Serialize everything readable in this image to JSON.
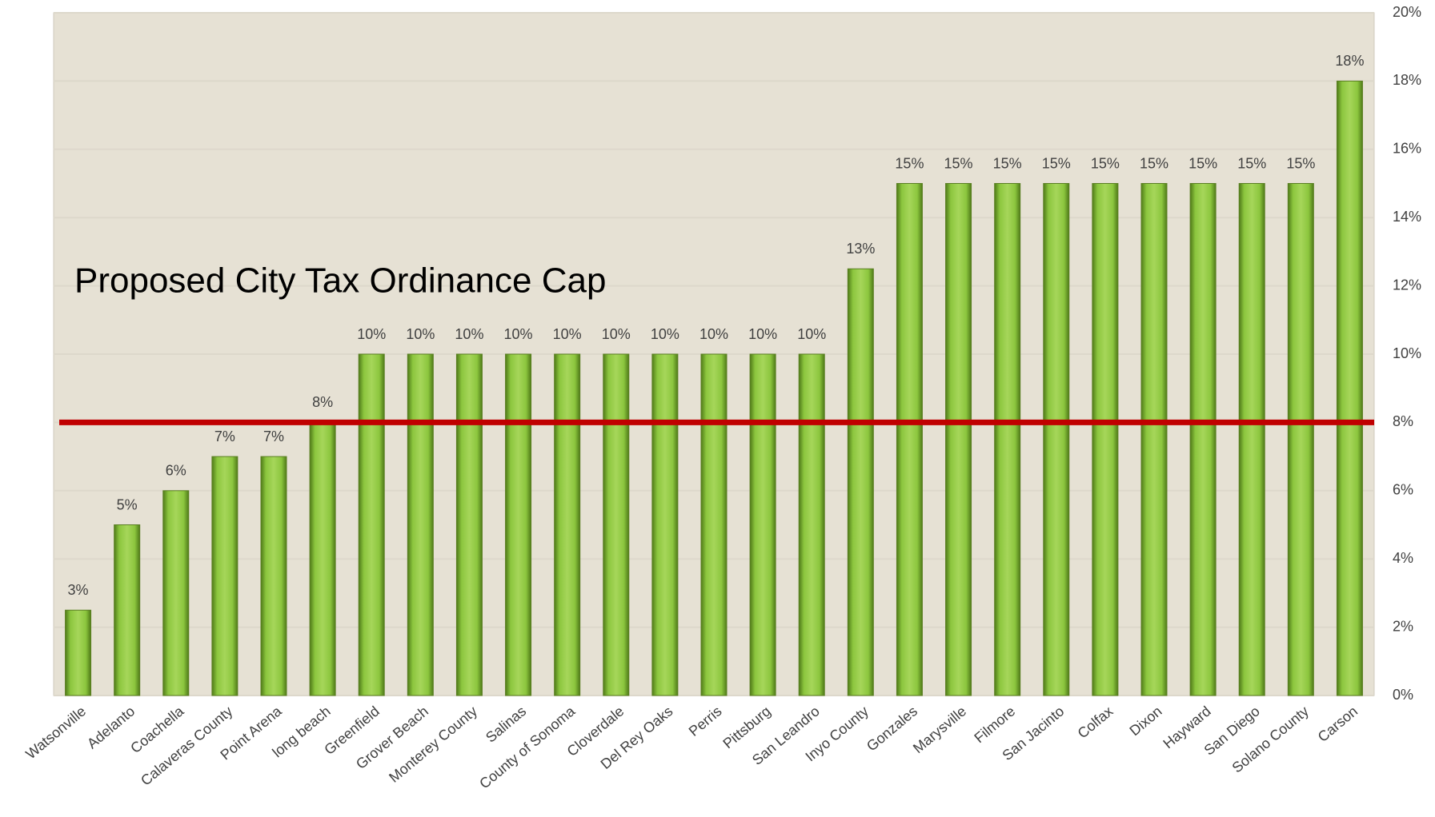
{
  "chart_data": {
    "type": "bar",
    "categories": [
      "Watsonville",
      "Adelanto",
      "Coachella",
      "Calaveras County",
      "Point Arena",
      "long beach",
      "Greenfield",
      "Grover Beach",
      "Monterey County",
      "Salinas",
      "County of Sonoma",
      "Cloverdale",
      "Del Rey Oaks",
      "Perris",
      "Pittsburg",
      "San Leandro",
      "Inyo County",
      "Gonzales",
      "Marysville",
      "Filmore",
      "San Jacinto",
      "Colfax",
      "Dixon",
      "Hayward",
      "San Diego",
      "Solano County",
      "Carson"
    ],
    "values": [
      2.5,
      5,
      6,
      7,
      7,
      8,
      10,
      10,
      10,
      10,
      10,
      10,
      10,
      10,
      10,
      10,
      12.5,
      15,
      15,
      15,
      15,
      15,
      15,
      15,
      15,
      15,
      18
    ],
    "value_labels": [
      "3%",
      "5%",
      "6%",
      "7%",
      "7%",
      "8%",
      "10%",
      "10%",
      "10%",
      "10%",
      "10%",
      "10%",
      "10%",
      "10%",
      "10%",
      "10%",
      "13%",
      "15%",
      "15%",
      "15%",
      "15%",
      "15%",
      "15%",
      "15%",
      "15%",
      "15%",
      "18%"
    ],
    "color": "#8cc63e",
    "ylim": [
      0,
      20
    ],
    "yticks": [
      {
        "value": 0,
        "label": "0%"
      },
      {
        "value": 2,
        "label": "2%"
      },
      {
        "value": 4,
        "label": "4%"
      },
      {
        "value": 6,
        "label": "6%"
      },
      {
        "value": 8,
        "label": "8%"
      },
      {
        "value": 10,
        "label": "10%"
      },
      {
        "value": 12,
        "label": "12%"
      },
      {
        "value": 14,
        "label": "14%"
      },
      {
        "value": 16,
        "label": "16%"
      },
      {
        "value": 18,
        "label": "18%"
      },
      {
        "value": 20,
        "label": "20%"
      }
    ],
    "grid": true,
    "reference_line": {
      "value": 8,
      "label": "Proposed City Tax Ordinance Cap",
      "color": "#c00000"
    }
  }
}
